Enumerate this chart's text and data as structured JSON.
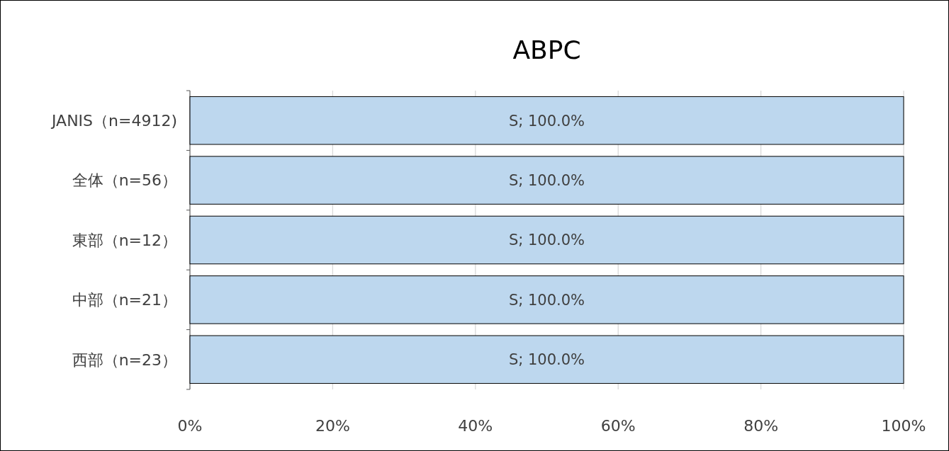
{
  "chart_data": {
    "type": "bar",
    "orientation": "horizontal",
    "title": "ABPC",
    "categories": [
      "JANIS（n=4912)",
      "全体（n=56）",
      "東部（n=12）",
      "中部（n=21）",
      "西部（n=23）"
    ],
    "values": [
      100,
      100,
      100,
      100,
      100
    ],
    "value_labels": [
      "S; 100.0%",
      "S; 100.0%",
      "S; 100.0%",
      "S; 100.0%",
      "S; 100.0%"
    ],
    "color": "#bdd7ee",
    "xlim": [
      0,
      100
    ],
    "xticks": [
      {
        "value": 0,
        "label": "0%"
      },
      {
        "value": 20,
        "label": "20%"
      },
      {
        "value": 40,
        "label": "40%"
      },
      {
        "value": 60,
        "label": "60%"
      },
      {
        "value": 80,
        "label": "80%"
      },
      {
        "value": 100,
        "label": "100%"
      }
    ],
    "grid": "x"
  }
}
